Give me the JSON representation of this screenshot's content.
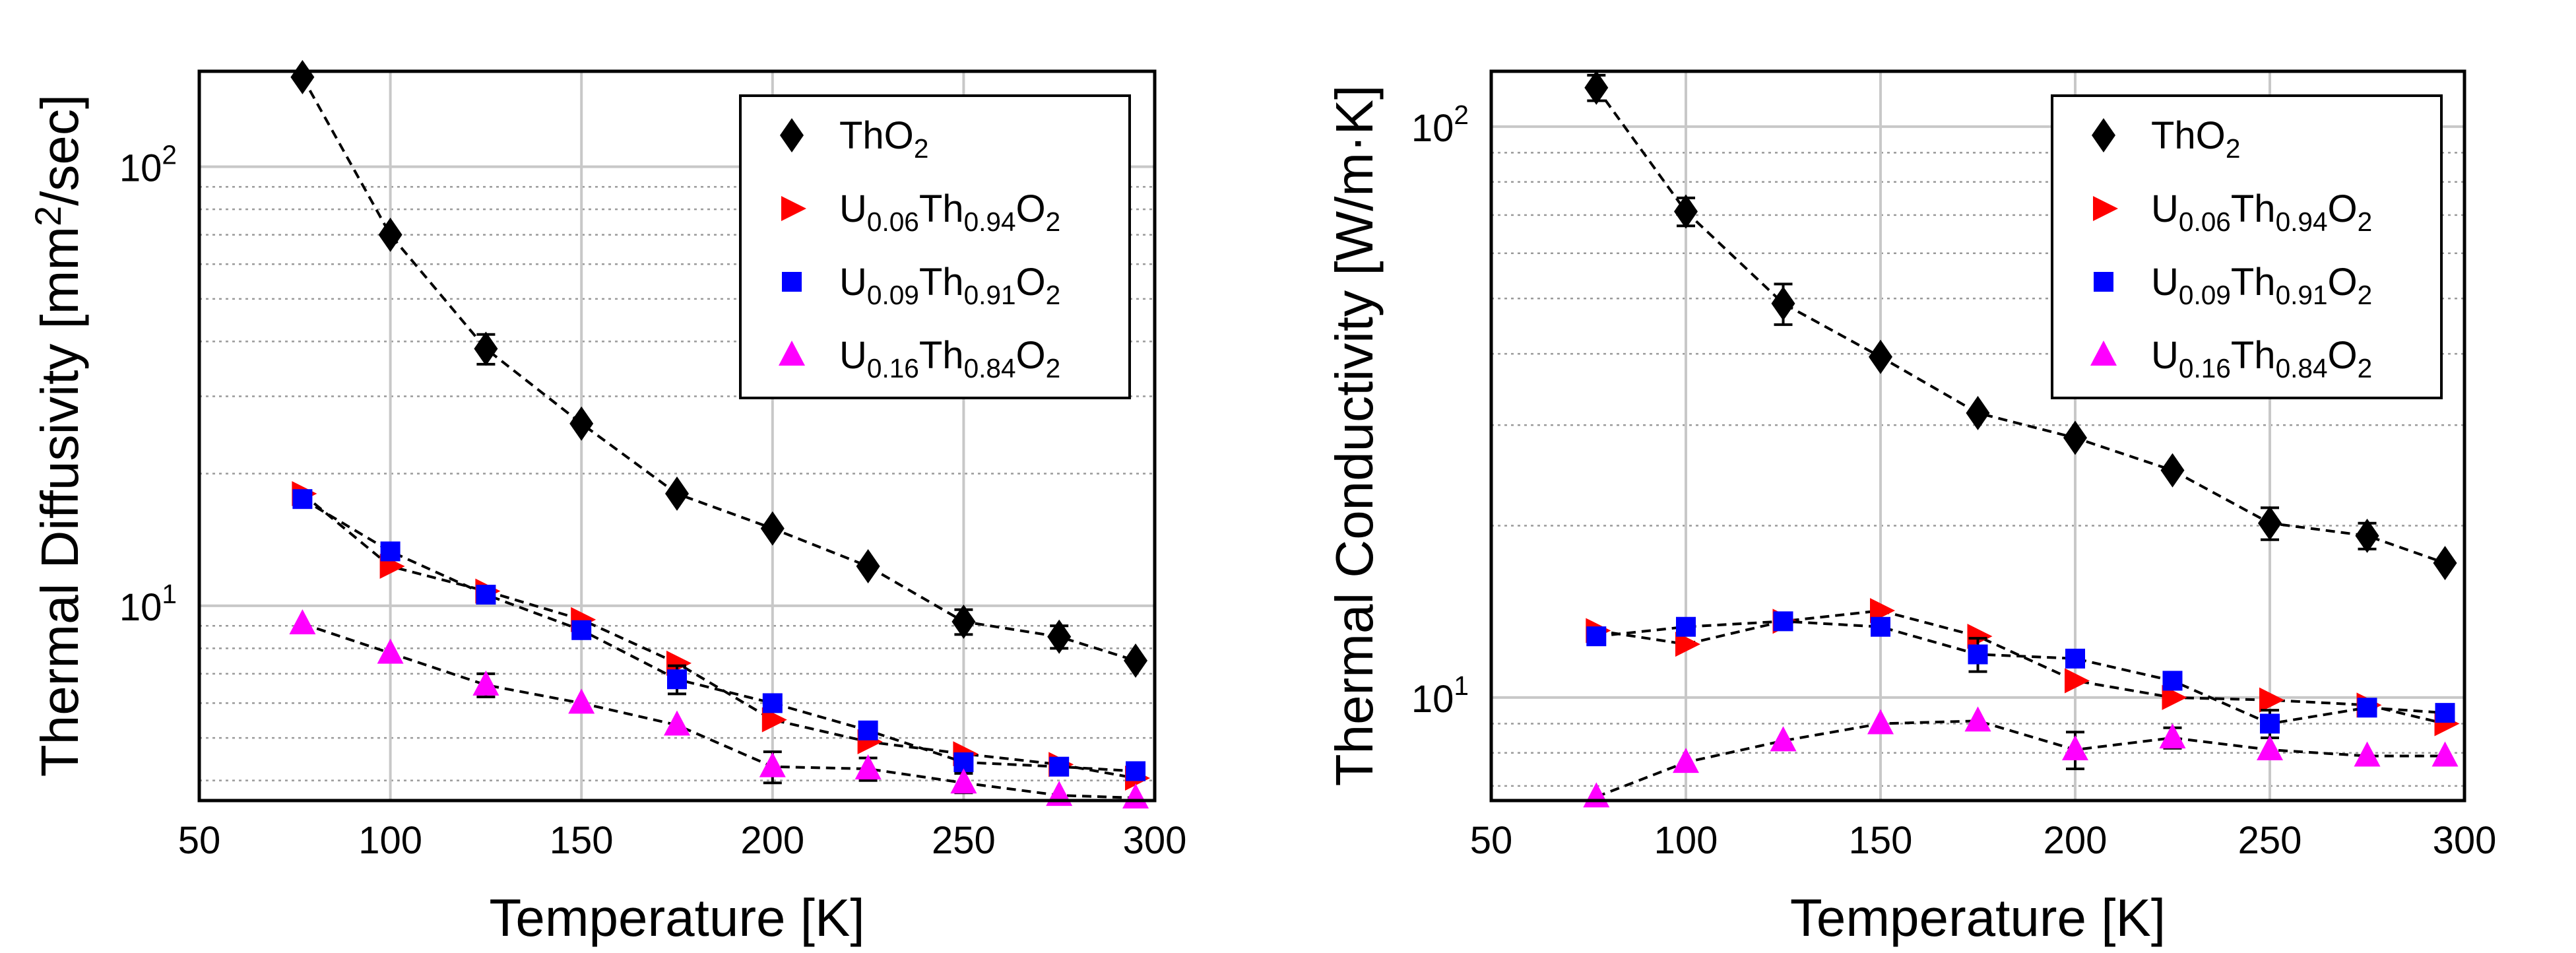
{
  "figure": {
    "name": "thermal-property-figure"
  },
  "chart_data": [
    {
      "type": "line",
      "ylabel_parts": [
        {
          "t": "Thermal Diffusivity [mm"
        },
        {
          "t": "2",
          "sup": true
        },
        {
          "t": "/sec]"
        }
      ],
      "xlabel": "Temperature [K]",
      "x_scale": "linear",
      "y_scale": "log",
      "xlim": [
        50,
        300
      ],
      "ylim": [
        3.6,
        165
      ],
      "x_ticks": [
        50,
        100,
        150,
        200,
        250,
        300
      ],
      "x_tick_labels": [
        "50",
        "100",
        "150",
        "200",
        "250",
        "300"
      ],
      "y_tick_labels": [
        {
          "v": 10,
          "base": "10",
          "exp": "1"
        },
        {
          "v": 100,
          "base": "10",
          "exp": "2"
        }
      ],
      "grid": true,
      "legend_position": "top-right",
      "series": [
        {
          "legend": [
            {
              "t": "ThO"
            },
            {
              "t": "2",
              "sub": true
            }
          ],
          "marker": "diamond",
          "color": "#000000",
          "x": [
            77,
            100,
            125,
            150,
            175,
            200,
            225,
            250,
            275,
            295
          ],
          "y": [
            160,
            70,
            38.5,
            26,
            18,
            15,
            12.3,
            9.2,
            8.5,
            7.5
          ],
          "err": [
            0,
            0,
            3,
            0,
            0,
            0,
            0,
            0.6,
            0.5,
            0
          ]
        },
        {
          "legend": [
            {
              "t": "U"
            },
            {
              "t": "0.06",
              "sub": true
            },
            {
              "t": "Th"
            },
            {
              "t": "0.94",
              "sub": true
            },
            {
              "t": "O"
            },
            {
              "t": "2",
              "sub": true
            }
          ],
          "marker": "triangle-right",
          "color": "#ff0000",
          "x": [
            77,
            100,
            125,
            150,
            175,
            200,
            225,
            250,
            275,
            295
          ],
          "y": [
            18,
            12.3,
            10.8,
            9.3,
            7.4,
            5.5,
            4.9,
            4.6,
            4.35,
            4.05
          ],
          "err": [
            0,
            0,
            0,
            0,
            0,
            0,
            0,
            0,
            0,
            0
          ]
        },
        {
          "legend": [
            {
              "t": "U"
            },
            {
              "t": "0.09",
              "sub": true
            },
            {
              "t": "Th"
            },
            {
              "t": "0.91",
              "sub": true
            },
            {
              "t": "O"
            },
            {
              "t": "2",
              "sub": true
            }
          ],
          "marker": "square",
          "color": "#0000ff",
          "x": [
            77,
            100,
            125,
            150,
            175,
            200,
            225,
            250,
            275,
            295
          ],
          "y": [
            17.5,
            13.3,
            10.6,
            8.8,
            6.8,
            6.0,
            5.2,
            4.4,
            4.3,
            4.2
          ],
          "err": [
            0,
            0,
            0,
            0,
            0.5,
            0,
            0,
            0,
            0,
            0
          ]
        },
        {
          "legend": [
            {
              "t": "U"
            },
            {
              "t": "0.16",
              "sub": true
            },
            {
              "t": "Th"
            },
            {
              "t": "0.84",
              "sub": true
            },
            {
              "t": "O"
            },
            {
              "t": "2",
              "sub": true
            }
          ],
          "marker": "triangle-up",
          "color": "#ff00ff",
          "x": [
            77,
            100,
            125,
            150,
            175,
            200,
            225,
            250,
            275,
            295
          ],
          "y": [
            9.1,
            7.8,
            6.6,
            6.0,
            5.35,
            4.3,
            4.25,
            3.95,
            3.7,
            3.65
          ],
          "err": [
            0,
            0,
            0.4,
            0,
            0,
            0.35,
            0.25,
            0.2,
            0,
            0
          ]
        }
      ]
    },
    {
      "type": "line",
      "ylabel_parts": [
        {
          "t": "Thermal Conductivity [W/m·K]"
        }
      ],
      "xlabel": "Temperature [K]",
      "x_scale": "linear",
      "y_scale": "log",
      "xlim": [
        50,
        300
      ],
      "ylim": [
        6.6,
        125
      ],
      "x_ticks": [
        50,
        100,
        150,
        200,
        250,
        300
      ],
      "x_tick_labels": [
        "50",
        "100",
        "150",
        "200",
        "250",
        "300"
      ],
      "y_tick_labels": [
        {
          "v": 10,
          "base": "10",
          "exp": "1"
        },
        {
          "v": 100,
          "base": "10",
          "exp": "2"
        }
      ],
      "grid": true,
      "legend_position": "top-right",
      "series": [
        {
          "legend": [
            {
              "t": "ThO"
            },
            {
              "t": "2",
              "sub": true
            }
          ],
          "marker": "diamond",
          "color": "#000000",
          "x": [
            77,
            100,
            125,
            150,
            175,
            200,
            225,
            250,
            275,
            295
          ],
          "y": [
            117,
            71,
            49,
            39.5,
            31.5,
            28.5,
            25,
            20.2,
            19.2,
            17.2
          ],
          "err": [
            6,
            4,
            4,
            0,
            0,
            0,
            0,
            1.3,
            1,
            0
          ]
        },
        {
          "legend": [
            {
              "t": "U"
            },
            {
              "t": "0.06",
              "sub": true
            },
            {
              "t": "Th"
            },
            {
              "t": "0.94",
              "sub": true
            },
            {
              "t": "O"
            },
            {
              "t": "2",
              "sub": true
            }
          ],
          "marker": "triangle-right",
          "color": "#ff0000",
          "x": [
            77,
            100,
            125,
            150,
            175,
            200,
            225,
            250,
            275,
            295
          ],
          "y": [
            13.1,
            12.4,
            13.6,
            14.2,
            12.8,
            10.7,
            10.0,
            9.9,
            9.7,
            9.0
          ],
          "err": [
            0,
            0,
            0,
            0,
            0,
            0,
            0,
            0,
            0,
            0
          ]
        },
        {
          "legend": [
            {
              "t": "U"
            },
            {
              "t": "0.09",
              "sub": true
            },
            {
              "t": "Th"
            },
            {
              "t": "0.91",
              "sub": true
            },
            {
              "t": "O"
            },
            {
              "t": "2",
              "sub": true
            }
          ],
          "marker": "square",
          "color": "#0000ff",
          "x": [
            77,
            100,
            125,
            150,
            175,
            200,
            225,
            250,
            275,
            295
          ],
          "y": [
            12.8,
            13.3,
            13.6,
            13.3,
            11.9,
            11.7,
            10.7,
            9.0,
            9.6,
            9.4
          ],
          "err": [
            0,
            0,
            0,
            0,
            0.8,
            0,
            0,
            0.5,
            0,
            0
          ]
        },
        {
          "legend": [
            {
              "t": "U"
            },
            {
              "t": "0.16",
              "sub": true
            },
            {
              "t": "Th"
            },
            {
              "t": "0.84",
              "sub": true
            },
            {
              "t": "O"
            },
            {
              "t": "2",
              "sub": true
            }
          ],
          "marker": "triangle-up",
          "color": "#ff00ff",
          "x": [
            77,
            100,
            125,
            150,
            175,
            200,
            225,
            250,
            275,
            295
          ],
          "y": [
            6.7,
            7.7,
            8.4,
            9.0,
            9.1,
            8.1,
            8.5,
            8.1,
            7.9,
            7.9
          ],
          "err": [
            0,
            0,
            0,
            0,
            0,
            0.6,
            0.35,
            0,
            0,
            0
          ]
        }
      ]
    }
  ]
}
